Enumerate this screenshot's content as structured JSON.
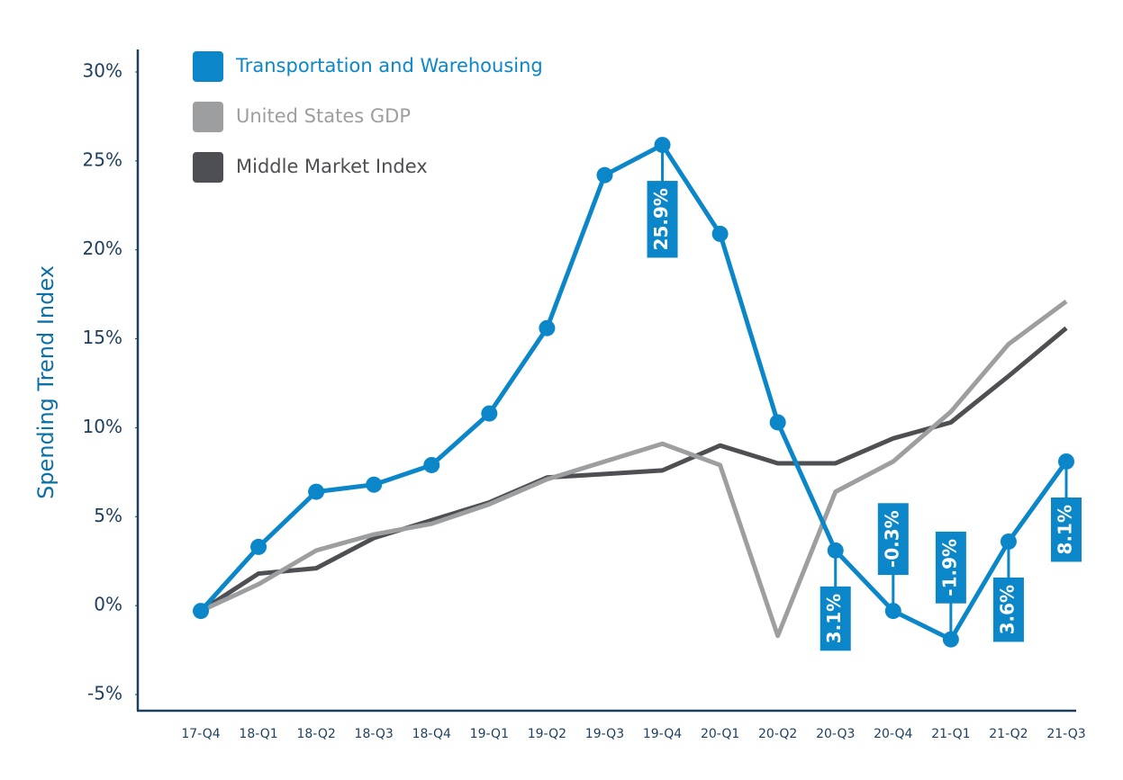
{
  "chart_data": {
    "type": "line",
    "y_label": "Spending Trend Index",
    "categories": [
      "17-Q4",
      "18-Q1",
      "18-Q2",
      "18-Q3",
      "18-Q4",
      "19-Q1",
      "19-Q2",
      "19-Q3",
      "19-Q4",
      "20-Q1",
      "20-Q2",
      "20-Q3",
      "20-Q4",
      "21-Q1",
      "21-Q2",
      "21-Q3"
    ],
    "series": [
      {
        "name": "Transportation and Warehousing",
        "color": "#0b87c9",
        "markers": true,
        "values": [
          -0.3,
          3.3,
          6.4,
          6.8,
          7.9,
          10.8,
          15.6,
          24.2,
          25.9,
          20.9,
          10.3,
          3.1,
          -0.3,
          -1.9,
          3.6,
          8.1
        ],
        "value_labels": [
          null,
          null,
          null,
          null,
          null,
          null,
          null,
          null,
          "25.9%",
          null,
          null,
          "3.1%",
          "-0.3%",
          "-1.9%",
          "3.6%",
          "8.1%"
        ]
      },
      {
        "name": "United States GDP",
        "color": "#9d9ea0",
        "markers": false,
        "values": [
          -0.3,
          1.2,
          3.1,
          4.0,
          4.6,
          5.7,
          7.1,
          8.1,
          9.1,
          7.9,
          -1.7,
          6.4,
          8.1,
          10.9,
          14.7,
          17.1
        ]
      },
      {
        "name": "Middle Market Index",
        "color": "#4e4f52",
        "markers": false,
        "values": [
          -0.3,
          1.8,
          2.1,
          3.8,
          4.8,
          5.8,
          7.2,
          7.4,
          7.6,
          9.0,
          8.0,
          8.0,
          9.4,
          10.3,
          12.9,
          15.6
        ]
      }
    ],
    "ylim": [
      -5,
      30
    ],
    "yticks": [
      {
        "value": -5,
        "label": "-5%"
      },
      {
        "value": 0,
        "label": "0%"
      },
      {
        "value": 5,
        "label": "5%"
      },
      {
        "value": 10,
        "label": "10%"
      },
      {
        "value": 15,
        "label": "15%"
      },
      {
        "value": 20,
        "label": "20%"
      },
      {
        "value": 25,
        "label": "25%"
      },
      {
        "value": 30,
        "label": "30%"
      }
    ],
    "grid": false,
    "legend": "top-left"
  }
}
